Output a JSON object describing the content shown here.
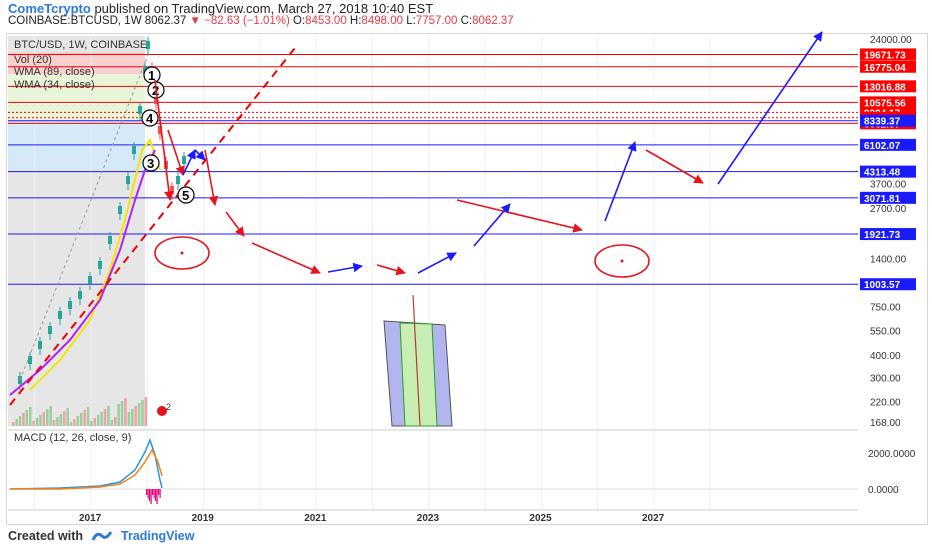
{
  "header": {
    "author": "ComeTcrypto",
    "published": "published on TradingView.com, March 27, 2018 10:40 EST",
    "symbol": "COINBASE:BTCUSD, 1W",
    "price": "8062.37",
    "change": "▼ −82.63 (−1.01%)",
    "o_label": "O:",
    "o": "8453.00",
    "h_label": "H:",
    "h": "8498.00",
    "l_label": "L:",
    "l": "7757.00",
    "c_label": "C:",
    "c": "8062.37"
  },
  "legend": {
    "main": "BTC/USD, 1W, COINBASE",
    "vol": "Vol (20)",
    "wma89": "WMA (89, close)",
    "wma34": "WMA (34, close)",
    "macd": "MACD (12, 26, close, 9)"
  },
  "footer": {
    "created_with": "Created with",
    "brand": "TradingView"
  },
  "colors": {
    "up": "#26a69a",
    "down": "#ef5350",
    "level_red": "#ff0000",
    "level_blue": "#1a1aff",
    "wma34": "#f5e600",
    "wma89": "#b020ff",
    "macd_line": "#2196f3",
    "signal_line": "#ff7f0e"
  },
  "chart_data": {
    "type": "line",
    "x_ticks": [
      "2017",
      "2019",
      "2021",
      "2023",
      "2025",
      "2027"
    ],
    "y_scale": "log",
    "y_ticks": [
      "24000.00",
      "3700.00",
      "2700.00",
      "1400.00",
      "750.00",
      "550.00",
      "400.00",
      "300.00",
      "220.00",
      "168.00"
    ],
    "red_levels": [
      "19671.73",
      "16775.04",
      "13016.88",
      "10575.56",
      "9294.17",
      "8659.85",
      "8062.37"
    ],
    "blue_levels": [
      "8339.37",
      "6102.07",
      "4313.48",
      "3071.81",
      "1921.73",
      "1003.57"
    ],
    "wave_labels": [
      "1",
      "2",
      "3",
      "4",
      "5"
    ],
    "macd_ticks": [
      "2000.0000",
      "0.0000"
    ],
    "vol_badge": "2"
  }
}
